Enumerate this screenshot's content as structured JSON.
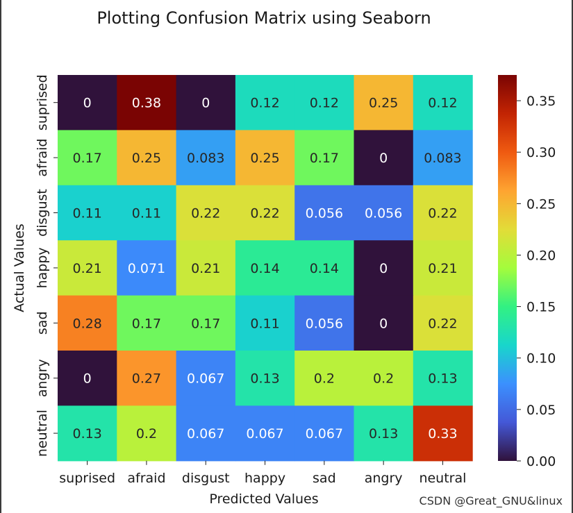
{
  "title": "Plotting Confusion Matrix using Seaborn",
  "watermark": "CSDN @Great_GNU&linux",
  "chart_data": {
    "type": "heatmap",
    "title": "Plotting Confusion Matrix using Seaborn",
    "xlabel": "Predicted Values",
    "ylabel": "Actual Values",
    "x_categories": [
      "suprised",
      "afraid",
      "disgust",
      "happy",
      "sad",
      "angry",
      "neutral"
    ],
    "y_categories": [
      "suprised",
      "afraid",
      "disgust",
      "happy",
      "sad",
      "angry",
      "neutral"
    ],
    "values": [
      [
        0,
        0.38,
        0,
        0.12,
        0.12,
        0.25,
        0.12
      ],
      [
        0.17,
        0.25,
        0.083,
        0.25,
        0.17,
        0,
        0.083
      ],
      [
        0.11,
        0.11,
        0.22,
        0.22,
        0.056,
        0.056,
        0.22
      ],
      [
        0.21,
        0.071,
        0.21,
        0.14,
        0.14,
        0,
        0.21
      ],
      [
        0.28,
        0.17,
        0.17,
        0.11,
        0.056,
        0,
        0.22
      ],
      [
        0,
        0.27,
        0.067,
        0.13,
        0.2,
        0.2,
        0.13
      ],
      [
        0.13,
        0.2,
        0.067,
        0.067,
        0.067,
        0.13,
        0.33
      ]
    ],
    "colormap": "turbo",
    "colorbar": {
      "range": [
        0,
        0.375
      ],
      "ticks": [
        0,
        0.05,
        0.1,
        0.15,
        0.2,
        0.25,
        0.3,
        0.35
      ],
      "tick_labels": [
        "0.00",
        "0.05",
        "0.10",
        "0.15",
        "0.20",
        "0.25",
        "0.30",
        "0.35"
      ]
    }
  }
}
